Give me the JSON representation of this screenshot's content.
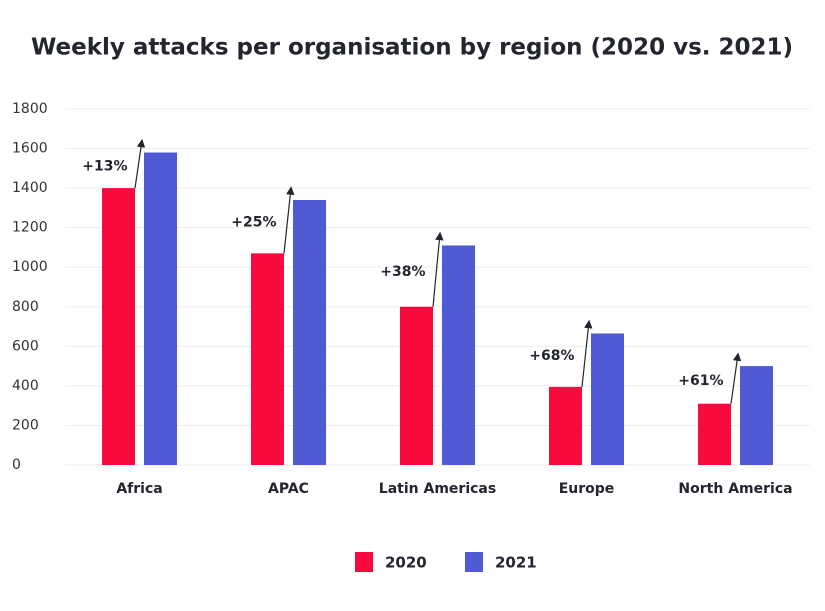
{
  "chart_data": {
    "type": "bar",
    "title": "Weekly attacks per organisation by region (2020 vs. 2021)",
    "categories": [
      "Africa",
      "APAC",
      "Latin Americas",
      "Europe",
      "North America"
    ],
    "series": [
      {
        "name": "2020",
        "color": "#f70a3d",
        "values": [
          1400,
          1070,
          800,
          395,
          310
        ]
      },
      {
        "name": "2021",
        "color": "#4f5ad4",
        "values": [
          1580,
          1340,
          1110,
          665,
          500
        ]
      }
    ],
    "change_labels": [
      "+13%",
      "+25%",
      "+38%",
      "+68%",
      "+61%"
    ],
    "ylim": [
      0,
      1800
    ],
    "yticks": [
      0,
      200,
      400,
      600,
      800,
      1000,
      1200,
      1400,
      1600,
      1800
    ],
    "grid": true,
    "legend": "bottom"
  }
}
